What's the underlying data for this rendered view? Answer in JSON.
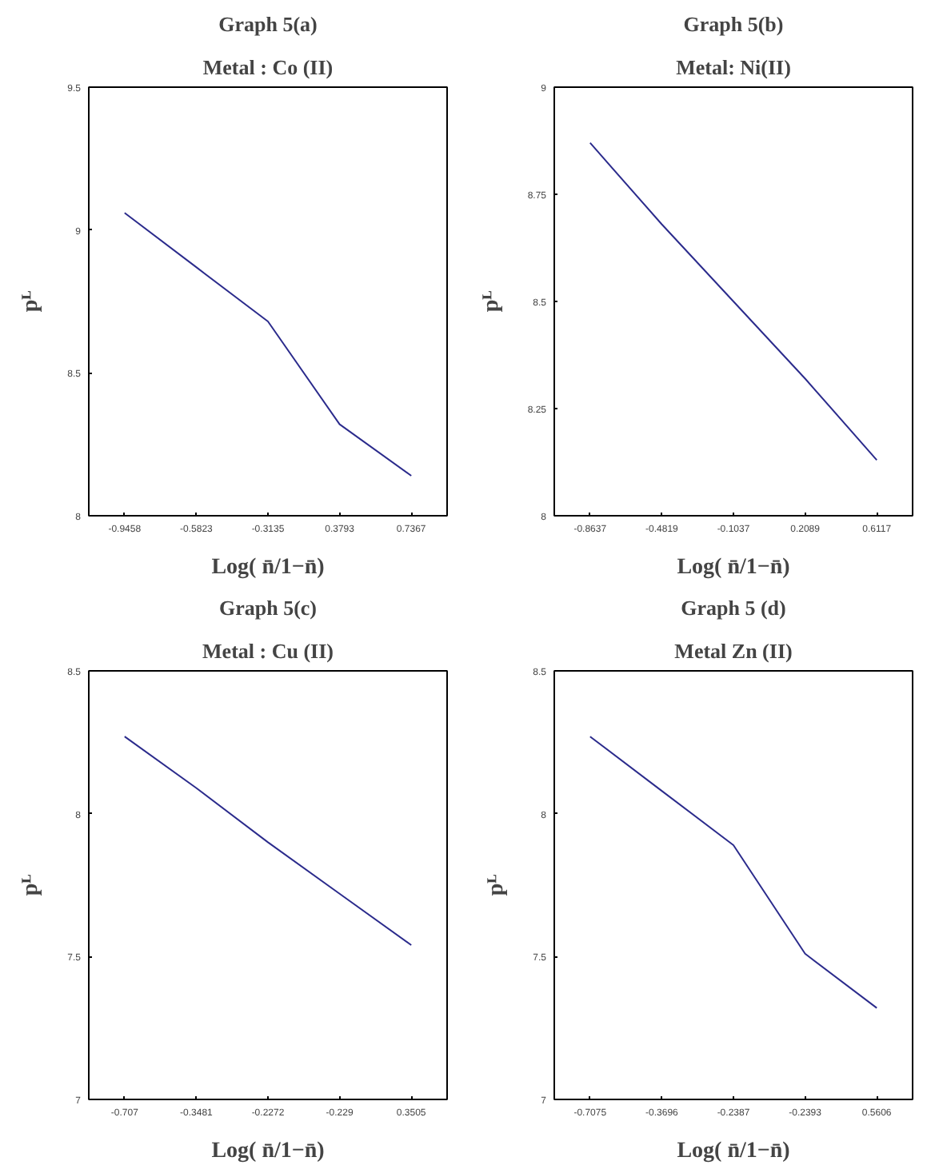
{
  "chart_data": [
    {
      "type": "line",
      "title": "Graph 5(a)",
      "subtitle": "Metal : Co (II)",
      "xlabel": "Log( n̄/1−n̄)",
      "ylabel": "pᴸ",
      "categories": [
        "-0.9458",
        "-0.5823",
        "-0.3135",
        "0.3793",
        "0.7367"
      ],
      "series": [
        {
          "color": "#2b2b8c",
          "values": [
            9.06,
            8.87,
            8.68,
            8.32,
            8.14
          ]
        }
      ],
      "ylim": [
        8,
        9.5
      ],
      "yticks": [
        8,
        8.5,
        9,
        9.5
      ]
    },
    {
      "type": "line",
      "title": "Graph 5(b)",
      "subtitle": "Metal: Ni(II)",
      "xlabel": "Log( n̄/1−n̄)",
      "ylabel": "pᴸ",
      "categories": [
        "-0.8637",
        "-0.4819",
        "-0.1037",
        "0.2089",
        "0.6117"
      ],
      "series": [
        {
          "color": "#2b2b8c",
          "values": [
            8.87,
            8.68,
            8.5,
            8.32,
            8.13
          ]
        }
      ],
      "ylim": [
        8,
        9
      ],
      "yticks": [
        8,
        8.25,
        8.5,
        8.75,
        9
      ]
    },
    {
      "type": "line",
      "title": "Graph 5(c)",
      "subtitle": "Metal : Cu (II)",
      "xlabel": "Log( n̄/1−n̄)",
      "ylabel": "pᴸ",
      "categories": [
        "-0.707",
        "-0.3481",
        "-0.2272",
        "-0.229",
        "0.3505"
      ],
      "series": [
        {
          "color": "#2b2b8c",
          "values": [
            8.27,
            8.09,
            7.9,
            7.72,
            7.54
          ]
        }
      ],
      "ylim": [
        7,
        8.5
      ],
      "yticks": [
        7,
        7.5,
        8,
        8.5
      ]
    },
    {
      "type": "line",
      "title": "Graph 5 (d)",
      "subtitle": "Metal Zn (II)",
      "xlabel": "Log( n̄/1−n̄)",
      "ylabel": "pᴸ",
      "categories": [
        "-0.7075",
        "-0.3696",
        "-0.2387",
        "-0.2393",
        "0.5606"
      ],
      "series": [
        {
          "color": "#2b2b8c",
          "values": [
            8.27,
            8.08,
            7.89,
            7.51,
            7.32
          ]
        }
      ],
      "ylim": [
        7,
        8.5
      ],
      "yticks": [
        7,
        7.5,
        8,
        8.5
      ]
    }
  ]
}
